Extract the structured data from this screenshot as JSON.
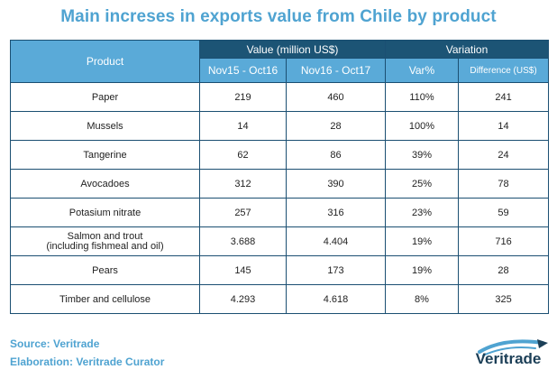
{
  "chart_data": {
    "type": "table",
    "title": "Main increses in exports value from Chile by product",
    "header": {
      "product": "Product",
      "value_group": "Value (million US$)",
      "variation_group": "Variation",
      "columns": [
        "Nov15 - Oct16",
        "Nov16 - Oct17",
        "Var%",
        "Difference (US$)"
      ]
    },
    "rows": [
      {
        "product": "Paper",
        "v2016": "219",
        "v2017": "460",
        "var_pct": "110%",
        "diff": "241"
      },
      {
        "product": "Mussels",
        "v2016": "14",
        "v2017": "28",
        "var_pct": "100%",
        "diff": "14"
      },
      {
        "product": "Tangerine",
        "v2016": "62",
        "v2017": "86",
        "var_pct": "39%",
        "diff": "24"
      },
      {
        "product": "Avocadoes",
        "v2016": "312",
        "v2017": "390",
        "var_pct": "25%",
        "diff": "78"
      },
      {
        "product": "Potasium nitrate",
        "v2016": "257",
        "v2017": "316",
        "var_pct": "23%",
        "diff": "59"
      },
      {
        "product": "Salmon and trout",
        "product_line2": "(including fishmeal and oil)",
        "v2016": "3.688",
        "v2017": "4.404",
        "var_pct": "19%",
        "diff": "716"
      },
      {
        "product": "Pears",
        "v2016": "145",
        "v2017": "173",
        "var_pct": "19%",
        "diff": "28"
      },
      {
        "product": "Timber and cellulose",
        "v2016": "4.293",
        "v2017": "4.618",
        "var_pct": "8%",
        "diff": "325"
      }
    ]
  },
  "footer": {
    "source": "Source: Veritrade",
    "elaboration": "Elaboration: Veritrade Curator"
  },
  "logo": {
    "text": "Veritrade",
    "icon": "veritrade-swoosh-icon"
  },
  "colors": {
    "title": "#4fa3d1",
    "header_dark": "#1c5475",
    "header_light": "#5aaad8",
    "border": "#1b4f72"
  }
}
